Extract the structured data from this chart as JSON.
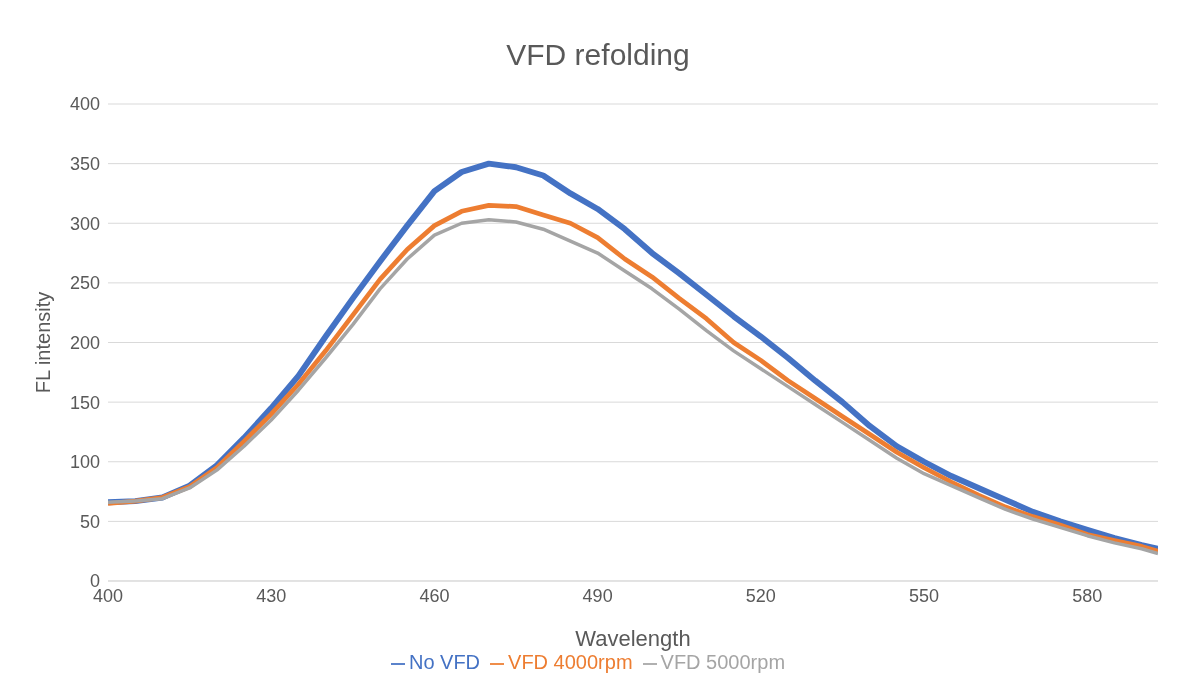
{
  "chart_data": {
    "type": "line",
    "title": "VFD refolding",
    "xlabel": "Wavelength",
    "ylabel": "FL intensity",
    "x": [
      400,
      405,
      410,
      415,
      420,
      425,
      430,
      435,
      440,
      445,
      450,
      455,
      460,
      465,
      470,
      475,
      480,
      485,
      490,
      495,
      500,
      505,
      510,
      515,
      520,
      525,
      530,
      535,
      540,
      545,
      550,
      555,
      560,
      565,
      570,
      575,
      580,
      585,
      590,
      593
    ],
    "series": [
      {
        "name": "No VFD",
        "color": "#4472c4",
        "values": [
          66,
          67,
          70,
          80,
          97,
          120,
          145,
          172,
          205,
          237,
          268,
          298,
          327,
          343,
          350,
          347,
          340,
          325,
          312,
          295,
          275,
          258,
          240,
          222,
          205,
          187,
          168,
          150,
          130,
          113,
          100,
          88,
          78,
          68,
          58,
          50,
          43,
          36,
          30,
          27
        ]
      },
      {
        "name": "VFD 4000rpm",
        "color": "#ed7d31",
        "values": [
          65,
          67,
          70,
          79,
          95,
          117,
          140,
          165,
          193,
          223,
          253,
          278,
          298,
          310,
          315,
          314,
          307,
          300,
          288,
          270,
          255,
          237,
          220,
          200,
          185,
          168,
          153,
          138,
          123,
          108,
          95,
          83,
          72,
          62,
          54,
          47,
          39,
          34,
          29,
          25
        ]
      },
      {
        "name": "VFD 5000rpm",
        "color": "#a5a5a5",
        "values": [
          66,
          67,
          69,
          78,
          93,
          113,
          135,
          160,
          187,
          215,
          245,
          270,
          290,
          300,
          303,
          301,
          295,
          285,
          275,
          260,
          245,
          228,
          210,
          193,
          178,
          163,
          148,
          133,
          118,
          103,
          90,
          80,
          70,
          60,
          52,
          45,
          38,
          32,
          27,
          23
        ]
      }
    ],
    "xlim": [
      400,
      593
    ],
    "xticks": [
      400,
      430,
      460,
      490,
      520,
      550,
      580
    ],
    "ylim": [
      0,
      400
    ],
    "yticks": [
      0,
      50,
      100,
      150,
      200,
      250,
      300,
      350,
      400
    ],
    "grid": "y",
    "legend": "bottom",
    "marker": "none",
    "line_style": "solid"
  }
}
